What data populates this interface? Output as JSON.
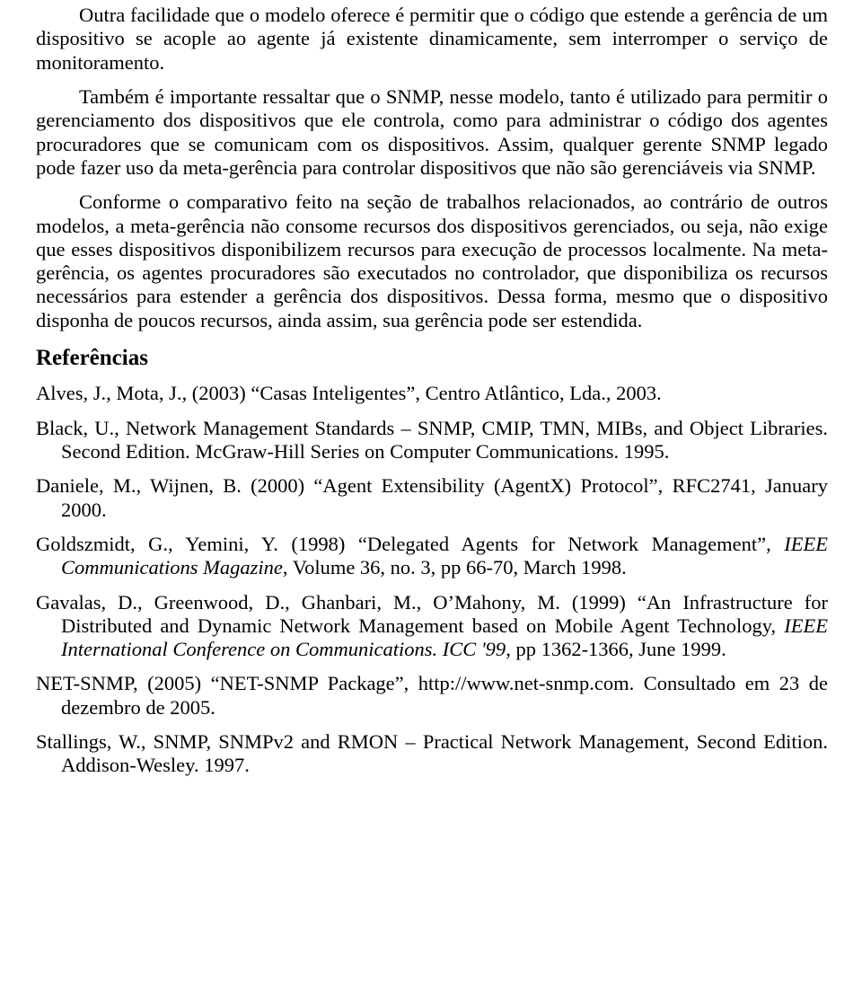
{
  "paragraphs": {
    "p1": "Outra facilidade que o modelo oferece é permitir que o código que estende a gerência de um dispositivo se acople ao agente já existente dinamicamente, sem interromper o serviço de monitoramento.",
    "p2": "Também é importante ressaltar que o SNMP, nesse modelo, tanto é utilizado para permitir o gerenciamento dos dispositivos que ele controla, como para administrar o código dos agentes procuradores que se comunicam com os dispositivos. Assim, qualquer gerente SNMP legado pode fazer uso da meta-gerência para controlar dispositivos que não são gerenciáveis via SNMP.",
    "p3": "Conforme o comparativo feito na seção de trabalhos relacionados, ao contrário de outros modelos, a meta-gerência não consome recursos dos dispositivos gerenciados, ou seja, não exige que esses dispositivos disponibilizem recursos para execução de processos localmente. Na meta-gerência, os agentes procuradores são executados no controlador, que disponibiliza os recursos necessários para estender a gerência dos dispositivos. Dessa forma, mesmo que o dispositivo disponha de poucos recursos, ainda assim, sua gerência pode ser estendida."
  },
  "section_heading": "Referências",
  "refs": {
    "r1": "Alves, J., Mota, J., (2003) “Casas Inteligentes”, Centro Atlântico, Lda., 2003.",
    "r2": "Black, U., Network Management Standards – SNMP, CMIP, TMN, MIBs, and Object Libraries. Second Edition. McGraw-Hill Series on Computer Communications. 1995.",
    "r3": "Daniele, M., Wijnen, B. (2000) “Agent Extensibility (AgentX) Protocol”, RFC2741, January 2000.",
    "r4_a": "Goldszmidt, G., Yemini, Y. (1998) “Delegated Agents for Network Management”, ",
    "r4_i": "IEEE Communications Magazine",
    "r4_b": ", Volume 36, no. 3, pp 66-70, March 1998.",
    "r5_a": "Gavalas, D., Greenwood, D., Ghanbari, M., O’Mahony, M. (1999) “An Infrastructure for Distributed and Dynamic Network Management based on Mobile Agent Technology, ",
    "r5_i": "IEEE International Conference on Communications. ICC '99",
    "r5_b": ", pp 1362-1366, June 1999.",
    "r6": "NET-SNMP, (2005) “NET-SNMP Package”, http://www.net-snmp.com. Consultado em 23 de dezembro de 2005.",
    "r7": "Stallings, W., SNMP, SNMPv2 and RMON – Practical Network Management, Second Edition. Addison-Wesley. 1997."
  }
}
